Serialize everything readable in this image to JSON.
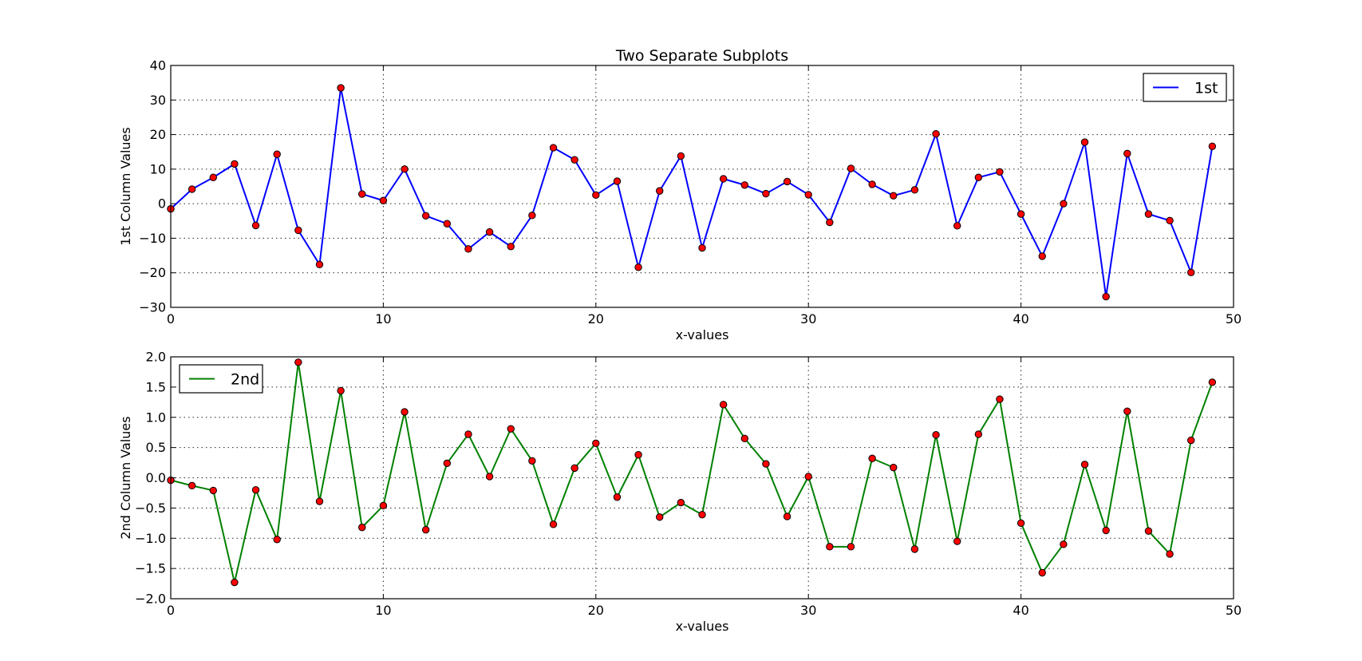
{
  "title": "Two Separate Subplots",
  "chart_data": [
    {
      "type": "line",
      "title": "Two Separate Subplots",
      "xlabel": "x-values",
      "ylabel": "1st Column Values",
      "xlim": [
        0,
        50
      ],
      "ylim": [
        -30,
        40
      ],
      "xticks": [
        0,
        10,
        20,
        30,
        40,
        50
      ],
      "yticks": [
        -30,
        -20,
        -10,
        0,
        10,
        20,
        30,
        40
      ],
      "ytick_labels": [
        "−30",
        "−20",
        "−10",
        "0",
        "10",
        "20",
        "30",
        "40"
      ],
      "grid": true,
      "legend_position": "top-right",
      "series": [
        {
          "name": "1st",
          "color": "#0000ff",
          "marker_color": "#ff0000",
          "x": [
            0,
            1,
            2,
            3,
            4,
            5,
            6,
            7,
            8,
            9,
            10,
            11,
            12,
            13,
            14,
            15,
            16,
            17,
            18,
            19,
            20,
            21,
            22,
            23,
            24,
            25,
            26,
            27,
            28,
            29,
            30,
            31,
            32,
            33,
            34,
            35,
            36,
            37,
            38,
            39,
            40,
            41,
            42,
            43,
            44,
            45,
            46,
            47,
            48,
            49
          ],
          "values": [
            -1.5,
            4.2,
            7.6,
            11.5,
            -6.3,
            14.3,
            -7.7,
            -17.6,
            33.5,
            2.8,
            0.9,
            10.0,
            -3.5,
            -5.8,
            -13.1,
            -8.2,
            -12.4,
            -3.4,
            16.2,
            12.7,
            2.5,
            6.5,
            -18.4,
            3.7,
            13.8,
            -12.8,
            7.2,
            5.4,
            2.9,
            6.4,
            2.6,
            -5.4,
            10.2,
            5.6,
            2.3,
            4.0,
            20.2,
            -6.4,
            7.6,
            9.2,
            -3.0,
            -15.2,
            0.0,
            17.8,
            -26.9,
            14.5,
            -3.0,
            -4.9,
            -19.9,
            16.6
          ]
        }
      ]
    },
    {
      "type": "line",
      "xlabel": "x-values",
      "ylabel": "2nd Column Values",
      "xlim": [
        0,
        50
      ],
      "ylim": [
        -2.0,
        2.0
      ],
      "xticks": [
        0,
        10,
        20,
        30,
        40,
        50
      ],
      "yticks": [
        -2.0,
        -1.5,
        -1.0,
        -0.5,
        0.0,
        0.5,
        1.0,
        1.5,
        2.0
      ],
      "ytick_labels": [
        "−2.0",
        "−1.5",
        "−1.0",
        "−0.5",
        "0.0",
        "0.5",
        "1.0",
        "1.5",
        "2.0"
      ],
      "grid": true,
      "legend_position": "top-left",
      "series": [
        {
          "name": "2nd",
          "color": "#008000",
          "marker_color": "#ff0000",
          "x": [
            0,
            1,
            2,
            3,
            4,
            5,
            6,
            7,
            8,
            9,
            10,
            11,
            12,
            13,
            14,
            15,
            16,
            17,
            18,
            19,
            20,
            21,
            22,
            23,
            24,
            25,
            26,
            27,
            28,
            29,
            30,
            31,
            32,
            33,
            34,
            35,
            36,
            37,
            38,
            39,
            40,
            41,
            42,
            43,
            44,
            45,
            46,
            47,
            48,
            49
          ],
          "values": [
            -0.04,
            -0.13,
            -0.21,
            -1.73,
            -0.2,
            -1.02,
            1.91,
            -0.39,
            1.44,
            -0.82,
            -0.46,
            1.09,
            -0.86,
            0.24,
            0.72,
            0.02,
            0.81,
            0.28,
            -0.77,
            0.16,
            0.57,
            -0.32,
            0.38,
            -0.65,
            -0.41,
            -0.61,
            1.21,
            0.65,
            0.23,
            -0.64,
            0.02,
            -1.14,
            -1.14,
            0.32,
            0.17,
            -1.18,
            0.71,
            -1.05,
            0.72,
            1.3,
            -0.75,
            -1.57,
            -1.1,
            0.22,
            -0.87,
            1.1,
            -0.88,
            -1.26,
            0.62,
            1.58
          ]
        }
      ]
    }
  ]
}
